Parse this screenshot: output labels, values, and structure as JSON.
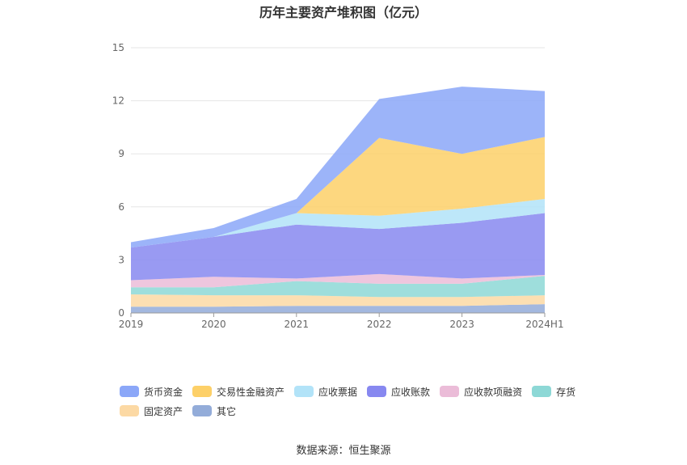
{
  "chart_data": {
    "type": "area",
    "stacked": true,
    "title": "历年主要资产堆积图（亿元）",
    "categories": [
      "2019",
      "2020",
      "2021",
      "2022",
      "2023",
      "2024H1"
    ],
    "ylim": [
      0,
      15
    ],
    "yticks": [
      "0",
      "3",
      "6",
      "9",
      "12",
      "15"
    ],
    "grid": true,
    "legend_position": "bottom",
    "series": [
      {
        "name": "其它",
        "color": "#93acd9",
        "values": [
          0.35,
          0.35,
          0.4,
          0.4,
          0.4,
          0.5
        ]
      },
      {
        "name": "固定资产",
        "color": "#fcd9a4",
        "values": [
          0.7,
          0.65,
          0.6,
          0.5,
          0.5,
          0.5
        ]
      },
      {
        "name": "存货",
        "color": "#8dd8d6",
        "values": [
          0.4,
          0.45,
          0.8,
          0.75,
          0.75,
          1.1
        ]
      },
      {
        "name": "应收款项融资",
        "color": "#ebbcd8",
        "values": [
          0.4,
          0.6,
          0.15,
          0.55,
          0.3,
          0.05
        ]
      },
      {
        "name": "应收账款",
        "color": "#8788f0",
        "values": [
          1.85,
          2.25,
          3.05,
          2.55,
          3.15,
          3.5
        ]
      },
      {
        "name": "应收票据",
        "color": "#b2e3f8",
        "values": [
          0.0,
          0.0,
          0.65,
          0.75,
          0.8,
          0.8
        ]
      },
      {
        "name": "交易性金融资产",
        "color": "#fdd068",
        "values": [
          0.0,
          0.0,
          0.0,
          4.4,
          3.1,
          3.5
        ]
      },
      {
        "name": "货币资金",
        "color": "#8ba7f8",
        "values": [
          0.3,
          0.5,
          0.8,
          2.2,
          3.8,
          2.6
        ]
      }
    ],
    "legend_order": [
      "货币资金",
      "交易性金融资产",
      "应收票据",
      "应收账款",
      "应收款项融资",
      "存货",
      "固定资产",
      "其它"
    ]
  },
  "footer": {
    "source": "数据来源：恒生聚源"
  }
}
